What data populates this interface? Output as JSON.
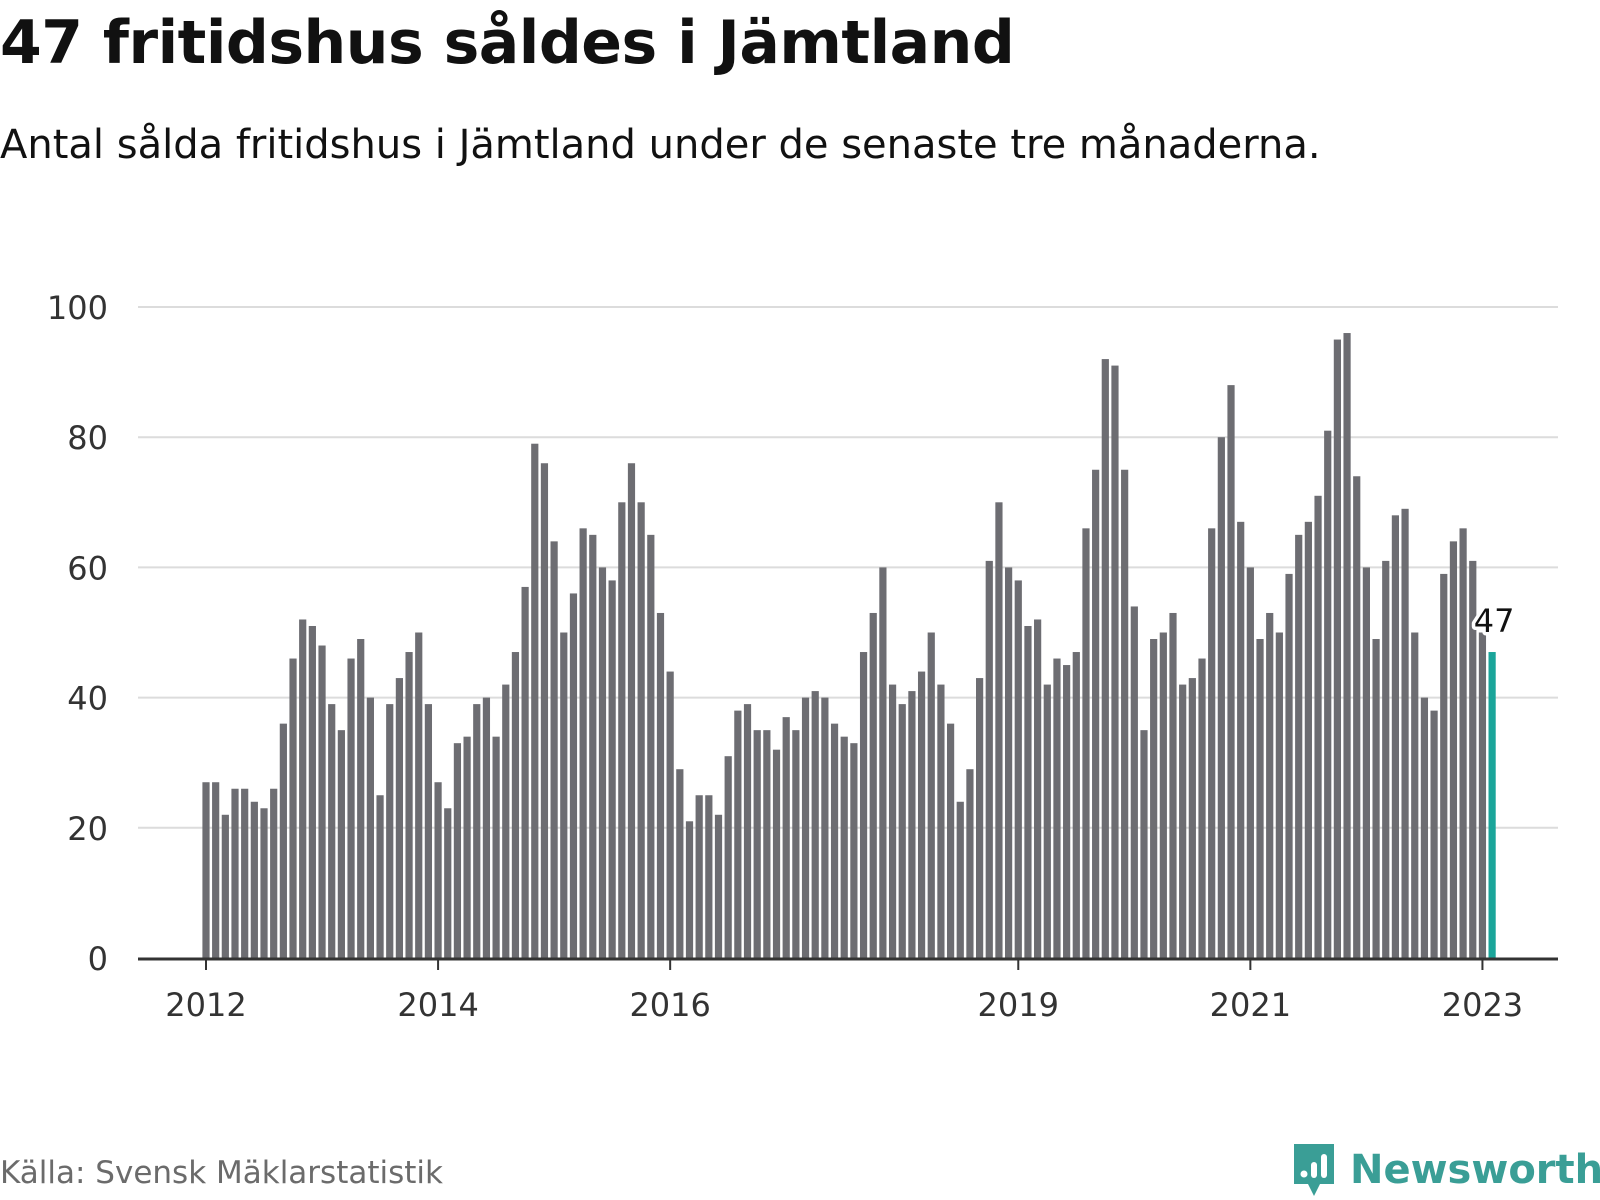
{
  "title": "47 fritidshus såldes i Jämtland",
  "subtitle": "Antal sålda fritidshus i Jämtland under de senaste tre månaderna.",
  "source": "Källa: Svensk Mäklarstatistik",
  "brand": "Newsworthy",
  "colors": {
    "bar": "#6d6d72",
    "highlight": "#1aa59a",
    "grid": "#dcdcdc",
    "axis": "#333333",
    "brand": "#3a9e96"
  },
  "chart_data": {
    "type": "bar",
    "ylim": [
      0,
      100
    ],
    "yticks": [
      0,
      20,
      40,
      60,
      80,
      100
    ],
    "grid": true,
    "xtick_labels": [
      {
        "label": "2012",
        "index": 0
      },
      {
        "label": "2014",
        "index": 24
      },
      {
        "label": "2016",
        "index": 48
      },
      {
        "label": "2019",
        "index": 84
      },
      {
        "label": "2021",
        "index": 108
      },
      {
        "label": "2023",
        "index": 132
      }
    ],
    "values": [
      27,
      27,
      22,
      26,
      26,
      24,
      23,
      26,
      36,
      46,
      52,
      51,
      48,
      39,
      35,
      46,
      49,
      40,
      25,
      39,
      43,
      47,
      50,
      39,
      27,
      23,
      33,
      34,
      39,
      40,
      34,
      42,
      47,
      57,
      79,
      76,
      64,
      50,
      56,
      66,
      65,
      60,
      58,
      70,
      76,
      70,
      65,
      53,
      44,
      29,
      21,
      25,
      25,
      22,
      31,
      38,
      39,
      35,
      35,
      32,
      37,
      35,
      40,
      41,
      40,
      36,
      34,
      33,
      47,
      53,
      60,
      42,
      39,
      41,
      44,
      50,
      42,
      36,
      24,
      29,
      43,
      61,
      70,
      60,
      58,
      51,
      52,
      42,
      46,
      45,
      47,
      66,
      75,
      92,
      91,
      75,
      54,
      35,
      49,
      50,
      53,
      42,
      43,
      46,
      66,
      80,
      88,
      67,
      60,
      49,
      53,
      50,
      59,
      65,
      67,
      71,
      81,
      95,
      96,
      74,
      60,
      49,
      61,
      68,
      69,
      50,
      40,
      38,
      59,
      64,
      66,
      61,
      50,
      47
    ],
    "highlight_label": "47"
  }
}
